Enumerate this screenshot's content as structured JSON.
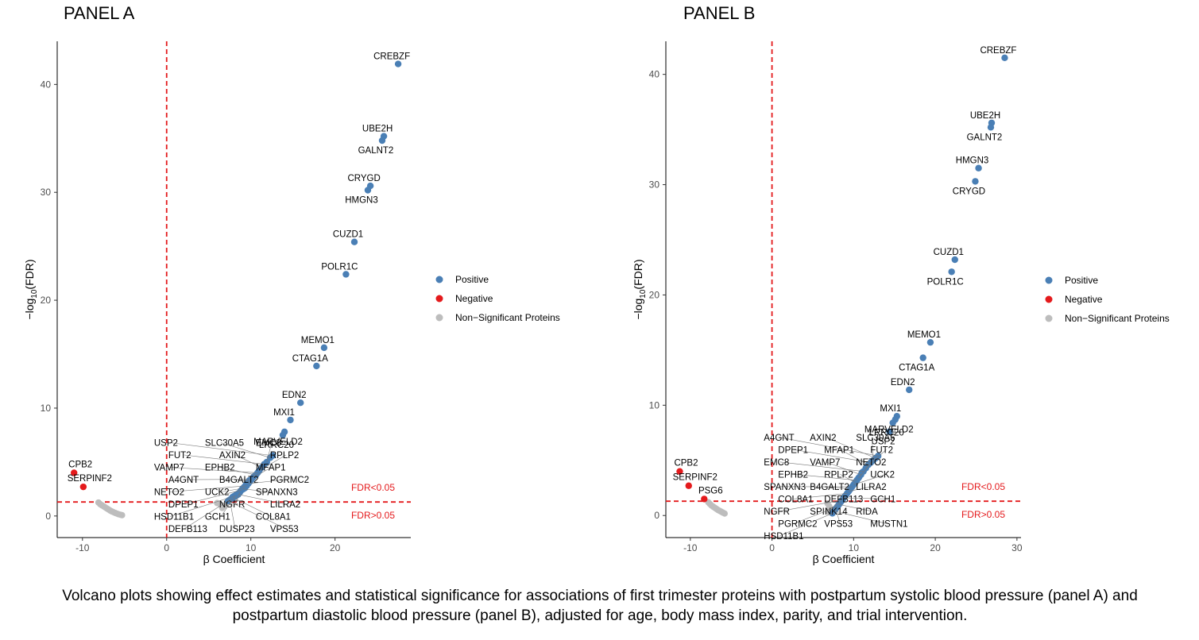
{
  "caption": "Volcano plots showing effect estimates and statistical significance for associations of first trimester proteins with postpartum systolic blood pressure (panel A) and postpartum diastolic blood pressure (panel B), adjusted for age, body mass index, parity, and trial intervention.",
  "colors": {
    "positive": "#4a7fb5",
    "negative": "#e41a1c",
    "nonsig": "#bdbdbd",
    "threshold": "#e41a1c"
  },
  "legend": [
    "Positive",
    "Negative",
    "Non−Significant Proteins"
  ],
  "chart_data": [
    {
      "type": "scatter",
      "title": "PANEL A",
      "xlabel": "β Coefficient",
      "ylabel": "−log10(FDR)",
      "ylabel_parts": [
        "−log",
        "10",
        "(FDR)"
      ],
      "xlim": [
        -13,
        29
      ],
      "ylim": [
        -2,
        44
      ],
      "xticks": [
        -10,
        0,
        10,
        20
      ],
      "yticks": [
        0,
        10,
        20,
        30,
        40
      ],
      "vline": 0,
      "hline": 1.3,
      "threshold_labels": [
        "FDR<0.05",
        "FDR>0.05"
      ],
      "labeled_points": [
        {
          "label": "CREBZF",
          "x": 27.5,
          "y": 41.9,
          "group": "positive"
        },
        {
          "label": "UBE2H",
          "x": 25.8,
          "y": 35.2,
          "group": "positive"
        },
        {
          "label": "GALNT2",
          "x": 25.6,
          "y": 34.8,
          "group": "positive"
        },
        {
          "label": "CRYGD",
          "x": 24.2,
          "y": 30.6,
          "group": "positive"
        },
        {
          "label": "HMGN3",
          "x": 23.9,
          "y": 30.2,
          "group": "positive"
        },
        {
          "label": "CUZD1",
          "x": 22.3,
          "y": 25.4,
          "group": "positive"
        },
        {
          "label": "POLR1C",
          "x": 21.3,
          "y": 22.4,
          "group": "positive"
        },
        {
          "label": "MEMO1",
          "x": 18.7,
          "y": 15.6,
          "group": "positive"
        },
        {
          "label": "CTAG1A",
          "x": 17.8,
          "y": 13.9,
          "group": "positive"
        },
        {
          "label": "EDN2",
          "x": 15.9,
          "y": 10.5,
          "group": "positive"
        },
        {
          "label": "MXI1",
          "x": 14.7,
          "y": 8.9,
          "group": "positive"
        },
        {
          "label": "MARVELD2",
          "x": 14.0,
          "y": 7.8,
          "group": "positive"
        },
        {
          "label": "LRRC20",
          "x": 13.8,
          "y": 7.5,
          "group": "positive"
        },
        {
          "label": "USP2",
          "x": 12.6,
          "y": 5.6,
          "group": "positive"
        },
        {
          "label": "SLC30A5",
          "x": 12.3,
          "y": 5.4,
          "group": "positive"
        },
        {
          "label": "EMC8",
          "x": 11.9,
          "y": 5.0,
          "group": "positive"
        },
        {
          "label": "FUT2",
          "x": 11.6,
          "y": 4.8,
          "group": "positive"
        },
        {
          "label": "AXIN2",
          "x": 11.3,
          "y": 4.5,
          "group": "positive"
        },
        {
          "label": "RPLP2",
          "x": 11.0,
          "y": 4.2,
          "group": "positive"
        },
        {
          "label": "VAMP7",
          "x": 10.8,
          "y": 4.0,
          "group": "positive"
        },
        {
          "label": "EPHB2",
          "x": 10.6,
          "y": 3.8,
          "group": "positive"
        },
        {
          "label": "MFAP1",
          "x": 10.3,
          "y": 3.6,
          "group": "positive"
        },
        {
          "label": "A4GNT",
          "x": 10.1,
          "y": 3.4,
          "group": "positive"
        },
        {
          "label": "B4GALT2",
          "x": 9.9,
          "y": 3.2,
          "group": "positive"
        },
        {
          "label": "PGRMC2",
          "x": 9.7,
          "y": 3.0,
          "group": "positive"
        },
        {
          "label": "NETO2",
          "x": 9.5,
          "y": 2.8,
          "group": "positive"
        },
        {
          "label": "UCK2",
          "x": 9.3,
          "y": 2.6,
          "group": "positive"
        },
        {
          "label": "SPANXN3",
          "x": 9.1,
          "y": 2.5,
          "group": "positive"
        },
        {
          "label": "DPEP1",
          "x": 8.9,
          "y": 2.4,
          "group": "positive"
        },
        {
          "label": "NGFR",
          "x": 8.7,
          "y": 2.2,
          "group": "positive"
        },
        {
          "label": "LILRA2",
          "x": 8.5,
          "y": 2.0,
          "group": "positive"
        },
        {
          "label": "HSD11B1",
          "x": 8.3,
          "y": 1.9,
          "group": "positive"
        },
        {
          "label": "GCH1",
          "x": 8.1,
          "y": 1.8,
          "group": "positive"
        },
        {
          "label": "COL8A1",
          "x": 7.9,
          "y": 1.7,
          "group": "positive"
        },
        {
          "label": "DEFB113",
          "x": 7.7,
          "y": 1.6,
          "group": "positive"
        },
        {
          "label": "DUSP23",
          "x": 7.5,
          "y": 1.5,
          "group": "positive"
        },
        {
          "label": "VPS53",
          "x": 7.3,
          "y": 1.4,
          "group": "positive"
        },
        {
          "label": "CPB2",
          "x": -11.0,
          "y": 4.0,
          "group": "negative"
        },
        {
          "label": "SERPINF2",
          "x": -9.9,
          "y": 2.7,
          "group": "negative"
        }
      ],
      "extra_points": {
        "positive": [
          [
            9.8,
            3.3
          ],
          [
            9.6,
            3.1
          ],
          [
            9.4,
            2.9
          ],
          [
            9.2,
            2.7
          ],
          [
            9.0,
            2.55
          ],
          [
            8.8,
            2.35
          ],
          [
            8.6,
            2.15
          ],
          [
            8.4,
            2.05
          ],
          [
            8.2,
            1.95
          ],
          [
            8.0,
            1.85
          ],
          [
            7.8,
            1.75
          ],
          [
            10.4,
            3.7
          ],
          [
            10.9,
            4.1
          ]
        ],
        "nonsig": [
          [
            -8.1,
            1.25
          ],
          [
            -7.9,
            1.1
          ],
          [
            -7.7,
            1.0
          ],
          [
            -7.5,
            0.9
          ],
          [
            -7.3,
            0.8
          ],
          [
            -7.1,
            0.7
          ],
          [
            -6.9,
            0.6
          ],
          [
            -6.7,
            0.5
          ],
          [
            -6.5,
            0.42
          ],
          [
            -6.3,
            0.35
          ],
          [
            -6.1,
            0.28
          ],
          [
            -5.9,
            0.22
          ],
          [
            -5.7,
            0.16
          ],
          [
            -5.5,
            0.12
          ],
          [
            -5.3,
            0.08
          ],
          [
            6.0,
            1.2
          ],
          [
            6.4,
            1.05
          ],
          [
            6.8,
            0.9
          ],
          [
            7.1,
            1.15
          ],
          [
            6.6,
            0.75
          ]
        ]
      }
    },
    {
      "type": "scatter",
      "title": "PANEL B",
      "xlabel": "β Coefficient",
      "ylabel": "−log10(FDR)",
      "ylabel_parts": [
        "−log",
        "10",
        "(FDR)"
      ],
      "xlim": [
        -13,
        30.5
      ],
      "ylim": [
        -2,
        43
      ],
      "xticks": [
        -10,
        0,
        10,
        20,
        30
      ],
      "yticks": [
        0,
        10,
        20,
        30,
        40
      ],
      "vline": 0,
      "hline": 1.3,
      "threshold_labels": [
        "FDR<0.05",
        "FDR>0.05"
      ],
      "labeled_points": [
        {
          "label": "CREBZF",
          "x": 28.5,
          "y": 41.5,
          "group": "positive"
        },
        {
          "label": "UBE2H",
          "x": 26.9,
          "y": 35.6,
          "group": "positive"
        },
        {
          "label": "GALNT2",
          "x": 26.8,
          "y": 35.2,
          "group": "positive"
        },
        {
          "label": "HMGN3",
          "x": 25.3,
          "y": 31.5,
          "group": "positive"
        },
        {
          "label": "CRYGD",
          "x": 24.9,
          "y": 30.3,
          "group": "positive"
        },
        {
          "label": "CUZD1",
          "x": 22.4,
          "y": 23.2,
          "group": "positive"
        },
        {
          "label": "POLR1C",
          "x": 22.0,
          "y": 22.1,
          "group": "positive"
        },
        {
          "label": "MEMO1",
          "x": 19.4,
          "y": 15.7,
          "group": "positive"
        },
        {
          "label": "CTAG1A",
          "x": 18.5,
          "y": 14.3,
          "group": "positive"
        },
        {
          "label": "EDN2",
          "x": 16.8,
          "y": 11.4,
          "group": "positive"
        },
        {
          "label": "MXI1",
          "x": 15.3,
          "y": 9.0,
          "group": "positive"
        },
        {
          "label": "MARVELD2",
          "x": 15.1,
          "y": 8.7,
          "group": "positive"
        },
        {
          "label": "LRRC20",
          "x": 14.8,
          "y": 8.4,
          "group": "positive"
        },
        {
          "label": "USP2",
          "x": 14.4,
          "y": 7.6,
          "group": "positive"
        },
        {
          "label": "A4GNT",
          "x": 13.0,
          "y": 5.4,
          "group": "positive"
        },
        {
          "label": "AXIN2",
          "x": 12.7,
          "y": 5.2,
          "group": "positive"
        },
        {
          "label": "SLC30A5",
          "x": 12.4,
          "y": 5.0,
          "group": "positive"
        },
        {
          "label": "DPEP1",
          "x": 12.1,
          "y": 4.8,
          "group": "positive"
        },
        {
          "label": "MFAP1",
          "x": 11.8,
          "y": 4.6,
          "group": "positive"
        },
        {
          "label": "FUT2",
          "x": 11.5,
          "y": 4.3,
          "group": "positive"
        },
        {
          "label": "EMC8",
          "x": 11.2,
          "y": 4.0,
          "group": "positive"
        },
        {
          "label": "VAMP7",
          "x": 10.9,
          "y": 3.7,
          "group": "positive"
        },
        {
          "label": "NETO2",
          "x": 10.6,
          "y": 3.4,
          "group": "positive"
        },
        {
          "label": "EPHB2",
          "x": 10.4,
          "y": 3.2,
          "group": "positive"
        },
        {
          "label": "RPLP2",
          "x": 10.2,
          "y": 3.0,
          "group": "positive"
        },
        {
          "label": "UCK2",
          "x": 10.0,
          "y": 2.8,
          "group": "positive"
        },
        {
          "label": "SPANXN3",
          "x": 9.8,
          "y": 2.6,
          "group": "positive"
        },
        {
          "label": "B4GALT2",
          "x": 9.6,
          "y": 2.4,
          "group": "positive"
        },
        {
          "label": "LILRA2",
          "x": 9.4,
          "y": 2.2,
          "group": "positive"
        },
        {
          "label": "COL8A1",
          "x": 9.2,
          "y": 2.0,
          "group": "positive"
        },
        {
          "label": "DEFB113",
          "x": 9.0,
          "y": 1.8,
          "group": "positive"
        },
        {
          "label": "GCH1",
          "x": 8.8,
          "y": 1.6,
          "group": "positive"
        },
        {
          "label": "NGFR",
          "x": 8.6,
          "y": 1.4,
          "group": "positive"
        },
        {
          "label": "SPINK14",
          "x": 8.4,
          "y": 1.2,
          "group": "positive"
        },
        {
          "label": "RIDA",
          "x": 8.2,
          "y": 1.0,
          "group": "positive"
        },
        {
          "label": "PGRMC2",
          "x": 8.0,
          "y": 0.8,
          "group": "positive"
        },
        {
          "label": "VPS53",
          "x": 7.8,
          "y": 0.6,
          "group": "positive"
        },
        {
          "label": "MUSTN1",
          "x": 7.6,
          "y": 0.4,
          "group": "positive"
        },
        {
          "label": "HSD11B1",
          "x": 7.4,
          "y": 0.2,
          "group": "positive"
        },
        {
          "label": "CPB2",
          "x": -11.3,
          "y": 4.0,
          "group": "negative"
        },
        {
          "label": "SERPINF2",
          "x": -10.2,
          "y": 2.7,
          "group": "negative"
        },
        {
          "label": "PSG6",
          "x": -8.3,
          "y": 1.5,
          "group": "negative"
        }
      ],
      "extra_points": {
        "positive": [
          [
            9.9,
            2.7
          ],
          [
            9.7,
            2.5
          ],
          [
            9.5,
            2.3
          ],
          [
            9.3,
            2.1
          ],
          [
            9.1,
            1.9
          ],
          [
            8.9,
            1.7
          ],
          [
            8.7,
            1.5
          ],
          [
            8.5,
            1.3
          ],
          [
            8.3,
            1.1
          ],
          [
            8.1,
            0.9
          ],
          [
            7.9,
            0.7
          ],
          [
            7.7,
            0.5
          ],
          [
            10.7,
            3.5
          ],
          [
            11.0,
            3.9
          ]
        ],
        "nonsig": [
          [
            -7.8,
            1.2
          ],
          [
            -7.6,
            1.05
          ],
          [
            -7.4,
            0.9
          ],
          [
            -7.2,
            0.8
          ],
          [
            -7.0,
            0.7
          ],
          [
            -6.8,
            0.6
          ],
          [
            -6.6,
            0.5
          ],
          [
            -6.4,
            0.42
          ],
          [
            -6.2,
            0.34
          ],
          [
            -6.0,
            0.26
          ],
          [
            -5.8,
            0.18
          ],
          [
            6.8,
            1.1
          ],
          [
            7.0,
            0.85
          ],
          [
            7.2,
            0.6
          ],
          [
            6.9,
            0.35
          ]
        ]
      }
    }
  ]
}
